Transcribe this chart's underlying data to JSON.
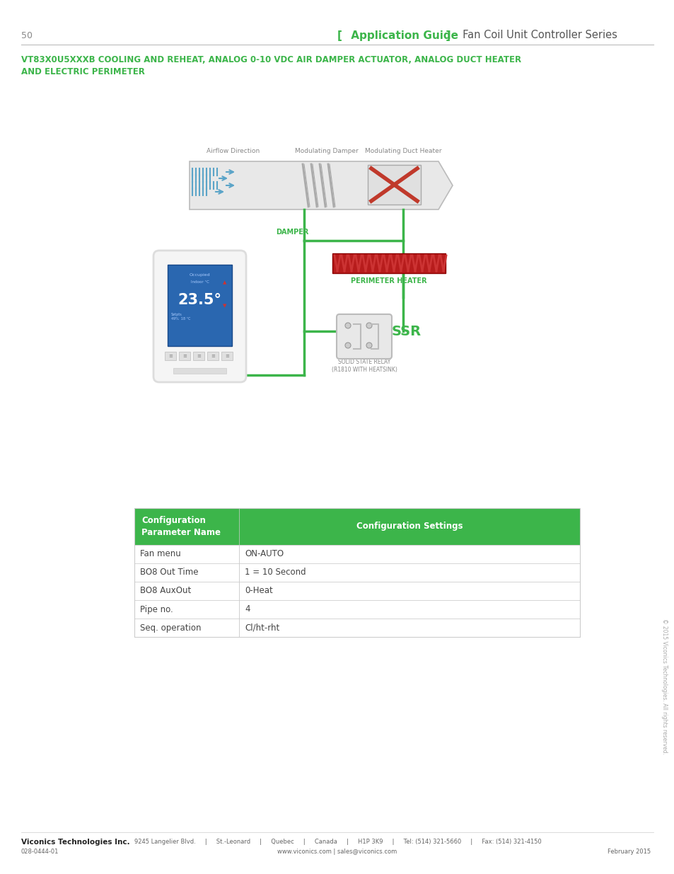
{
  "page_number": "50",
  "header_bracket_color": "#3cb54a",
  "header_text_bracket": "Application Guide",
  "header_text_series": "Fan Coil Unit Controller Series",
  "title_line1": "VT83X0U5XXXB COOLING AND REHEAT, ANALOG 0-10 VDC AIR DAMPER ACTUATOR, ANALOG DUCT HEATER",
  "title_line2": "AND ELECTRIC PERIMETER",
  "title_color": "#3cb54a",
  "table_header_bg": "#3cb54a",
  "table_header_text_color": "#ffffff",
  "table_col1_header": "Configuration\nParameter Name",
  "table_col2_header": "Configuration Settings",
  "table_rows": [
    [
      "Fan menu",
      "ON-AUTO"
    ],
    [
      "BO8 Out Time",
      "1 = 10 Second"
    ],
    [
      "BO8 AuxOut",
      "0-Heat"
    ],
    [
      "Pipe no.",
      "4"
    ],
    [
      "Seq. operation",
      "Cl/ht-rht"
    ]
  ],
  "table_border_color": "#cccccc",
  "table_text_color": "#444444",
  "footer_company": "Viconics Technologies Inc.",
  "footer_address": "9245 Langelier Blvd.     |     St.-Leonard     |     Quebec     |     Canada     |     H1P 3K9     |     Tel: (514) 321-5660     |     Fax: (514) 321-4150",
  "footer_web": "www.viconics.com | sales@viconics.com",
  "footer_doc": "028-0444-01",
  "footer_date": "February 2015",
  "footer_copyright": "© 2015 Viconics Technologies. All rights reserved.",
  "diagram_label_airflow": "Airflow Direction",
  "diagram_label_damper_top": "Modulating Damper",
  "diagram_label_duct_top": "Modulating Duct Heater",
  "diagram_label_damper_wire": "DAMPER",
  "diagram_label_perimeter": "PERIMETER HEATER",
  "diagram_label_ssr": "SSR",
  "diagram_label_ssr_sub": "SOLID STATE RELAY\n(R1810 WITH HEATSINK)",
  "green_color": "#3cb54a",
  "blue_color": "#5ba4c8",
  "red_color": "#c0392b",
  "gray_duct": "#d8d8d8",
  "gray_label": "#888888"
}
